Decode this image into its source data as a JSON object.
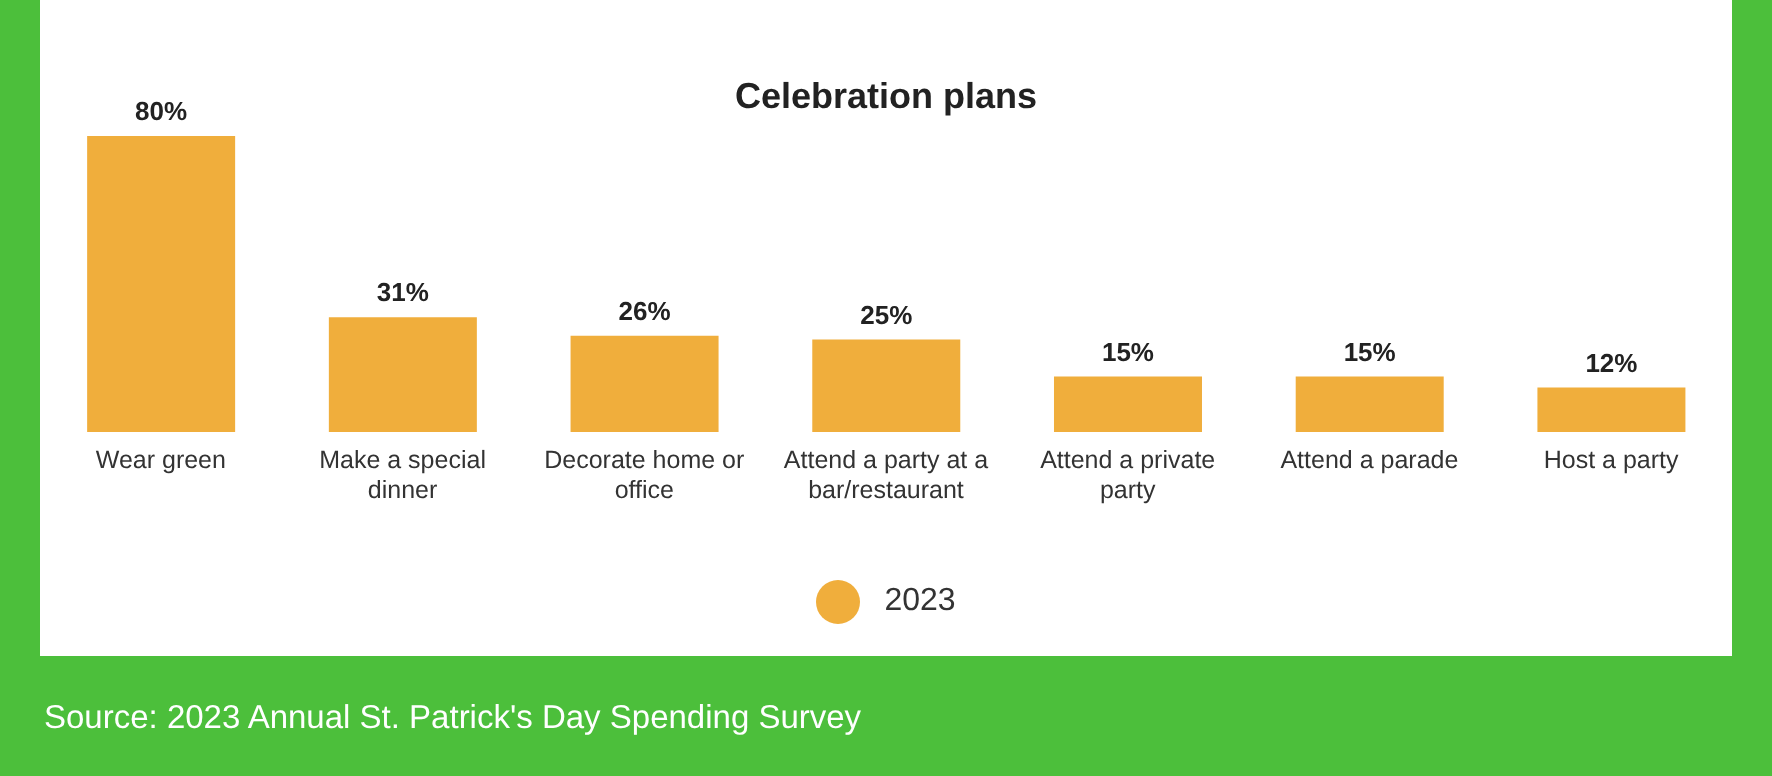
{
  "chart_data": {
    "type": "bar",
    "title": "Celebration plans",
    "categories": [
      "Wear green",
      "Make a special dinner",
      "Decorate home or office",
      "Attend a party at a bar/restaurant",
      "Attend a private party",
      "Attend a parade",
      "Host a party"
    ],
    "series": [
      {
        "name": "2023",
        "color": "#f0ae3c",
        "values": [
          80,
          31,
          26,
          25,
          15,
          15,
          12
        ],
        "value_labels": [
          "80%",
          "31%",
          "26%",
          "25%",
          "15%",
          "15%",
          "12%"
        ]
      }
    ],
    "legend": "bottom",
    "grid": false,
    "annotations": [
      "Source: 2023 Annual St. Patrick's Day Spending Survey"
    ]
  }
}
